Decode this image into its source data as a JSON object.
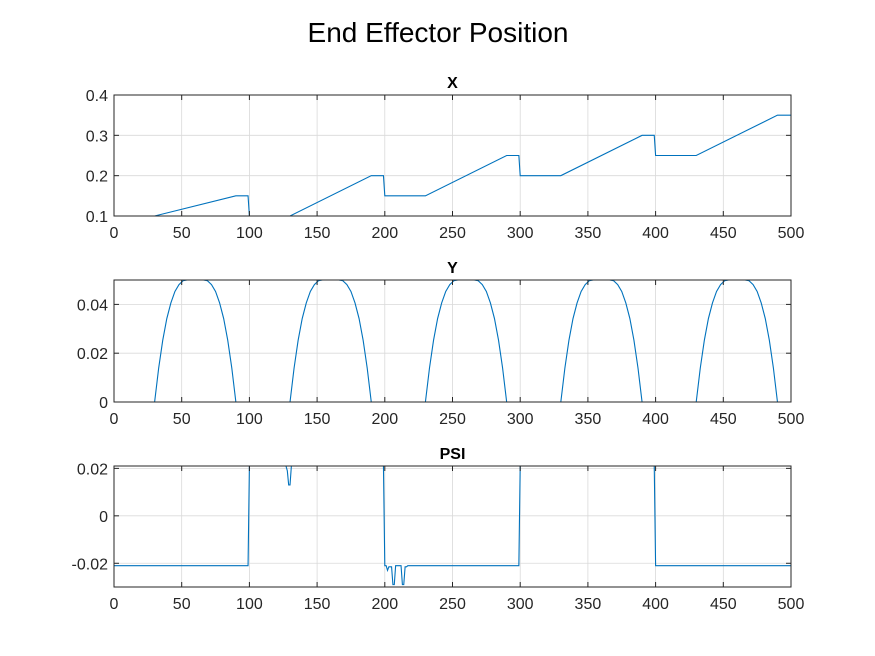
{
  "figure_title": "End Effector Position",
  "chart_data": [
    {
      "type": "line",
      "title": "X",
      "xlabel": "",
      "ylabel": "",
      "xlim": [
        0,
        500
      ],
      "ylim": [
        0.1,
        0.4
      ],
      "grid": true,
      "xticks": [
        0,
        50,
        100,
        150,
        200,
        250,
        300,
        350,
        400,
        450,
        500
      ],
      "yticks": [
        0.1,
        0.2,
        0.3,
        0.4
      ],
      "ytick_labels": [
        "0.1",
        "0.2",
        "0.3",
        "0.4"
      ],
      "color": "#0072bd",
      "x": [
        0,
        30,
        90,
        99,
        100,
        130,
        190,
        199,
        200,
        230,
        290,
        299,
        300,
        330,
        390,
        399,
        400,
        430,
        490,
        500
      ],
      "y": [
        0.1,
        0.1,
        0.15,
        0.15,
        0.1,
        0.1,
        0.2,
        0.2,
        0.15,
        0.15,
        0.25,
        0.25,
        0.2,
        0.2,
        0.3,
        0.3,
        0.25,
        0.25,
        0.35,
        0.35
      ]
    },
    {
      "type": "line",
      "title": "Y",
      "xlabel": "",
      "ylabel": "",
      "xlim": [
        0,
        500
      ],
      "ylim": [
        0,
        0.05
      ],
      "grid": true,
      "xticks": [
        0,
        50,
        100,
        150,
        200,
        250,
        300,
        350,
        400,
        450,
        500
      ],
      "yticks": [
        0,
        0.02,
        0.04
      ],
      "ytick_labels": [
        "0",
        "0.02",
        "0.04"
      ],
      "color": "#0072bd",
      "x": [
        0,
        30,
        33,
        36,
        39,
        42,
        45,
        48,
        51,
        54,
        57,
        60,
        63,
        66,
        69,
        72,
        75,
        78,
        81,
        84,
        87,
        90,
        130,
        133,
        136,
        139,
        142,
        145,
        148,
        151,
        154,
        157,
        160,
        163,
        166,
        169,
        172,
        175,
        178,
        181,
        184,
        187,
        190,
        230,
        233,
        236,
        239,
        242,
        245,
        248,
        251,
        254,
        257,
        260,
        263,
        266,
        269,
        272,
        275,
        278,
        281,
        284,
        287,
        290,
        330,
        333,
        336,
        339,
        342,
        345,
        348,
        351,
        354,
        357,
        360,
        363,
        366,
        369,
        372,
        375,
        378,
        381,
        384,
        387,
        390,
        430,
        433,
        436,
        439,
        442,
        445,
        448,
        451,
        454,
        457,
        460,
        463,
        466,
        469,
        472,
        475,
        478,
        481,
        484,
        487,
        490,
        500
      ],
      "y": [
        0,
        0,
        0.0139,
        0.0253,
        0.0342,
        0.0406,
        0.0453,
        0.0481,
        0.0497,
        0.05,
        0.05,
        0.05,
        0.05,
        0.05,
        0.0497,
        0.0481,
        0.0453,
        0.0406,
        0.0342,
        0.0253,
        0.0139,
        0,
        0,
        0.0139,
        0.0253,
        0.0342,
        0.0406,
        0.0453,
        0.0481,
        0.0497,
        0.05,
        0.05,
        0.05,
        0.05,
        0.05,
        0.0497,
        0.0481,
        0.0453,
        0.0406,
        0.0342,
        0.0253,
        0.0139,
        0,
        0,
        0.0139,
        0.0253,
        0.0342,
        0.0406,
        0.0453,
        0.0481,
        0.0497,
        0.05,
        0.05,
        0.05,
        0.05,
        0.05,
        0.0497,
        0.0481,
        0.0453,
        0.0406,
        0.0342,
        0.0253,
        0.0139,
        0,
        0,
        0.0139,
        0.0253,
        0.0342,
        0.0406,
        0.0453,
        0.0481,
        0.0497,
        0.05,
        0.05,
        0.05,
        0.05,
        0.05,
        0.0497,
        0.0481,
        0.0453,
        0.0406,
        0.0342,
        0.0253,
        0.0139,
        0,
        0,
        0.0139,
        0.0253,
        0.0342,
        0.0406,
        0.0453,
        0.0481,
        0.0497,
        0.05,
        0.05,
        0.05,
        0.05,
        0.05,
        0.0497,
        0.0481,
        0.0453,
        0.0406,
        0.0342,
        0.0253,
        0.0139,
        0,
        0
      ]
    },
    {
      "type": "line",
      "title": "PSI",
      "xlabel": "",
      "ylabel": "",
      "xlim": [
        0,
        500
      ],
      "ylim": [
        -0.03,
        0.021
      ],
      "grid": true,
      "xticks": [
        0,
        50,
        100,
        150,
        200,
        250,
        300,
        350,
        400,
        450,
        500
      ],
      "yticks": [
        -0.02,
        0,
        0.02
      ],
      "ytick_labels": [
        "-0.02",
        "0",
        "0.02"
      ],
      "color": "#0072bd",
      "x": [
        0,
        99,
        100,
        127,
        128,
        129,
        130,
        131,
        199,
        200,
        201,
        202,
        203,
        205,
        206,
        207,
        208,
        211,
        212,
        213,
        214,
        215,
        216,
        217,
        218,
        299,
        300,
        399,
        400,
        500
      ],
      "y": [
        -0.021,
        -0.021,
        0.021,
        0.021,
        0.019,
        0.013,
        0.013,
        0.021,
        0.021,
        -0.021,
        -0.021,
        -0.023,
        -0.0215,
        -0.0215,
        -0.029,
        -0.029,
        -0.021,
        -0.021,
        -0.021,
        -0.029,
        -0.029,
        -0.0215,
        -0.0215,
        -0.021,
        -0.021,
        -0.021,
        0.021,
        0.021,
        -0.021,
        -0.021
      ]
    }
  ]
}
